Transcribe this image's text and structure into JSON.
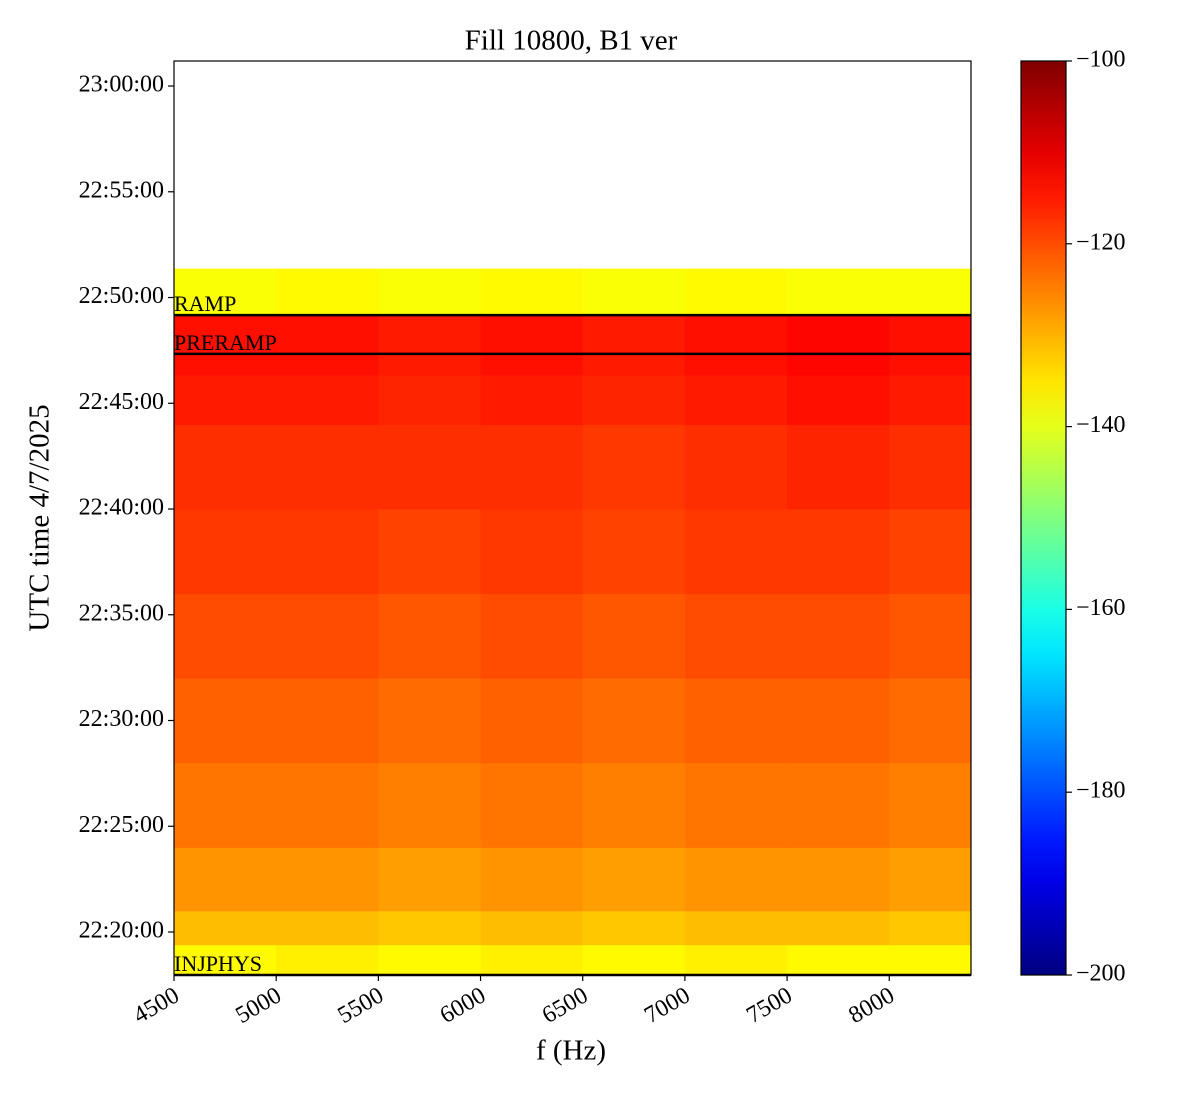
{
  "chart_data": {
    "type": "spectrogram",
    "title": "Fill 10800, B1 ver",
    "x_label": "f (Hz)",
    "y_label": "UTC time 4/7/2025",
    "colormap": "jet",
    "xlim": [
      4500,
      8400
    ],
    "xticks": [
      4500,
      5000,
      5500,
      6000,
      6500,
      7000,
      7500,
      8000
    ],
    "ylim": [
      "22:17:58",
      "23:01:11"
    ],
    "yticks": [
      "22:20:00",
      "22:25:00",
      "22:30:00",
      "22:35:00",
      "22:40:00",
      "22:45:00",
      "22:50:00",
      "22:55:00",
      "23:00:00"
    ],
    "clim": [
      -200,
      -100
    ],
    "cticks": [
      {
        "value": -200,
        "label": "−200"
      },
      {
        "value": -180,
        "label": "−180"
      },
      {
        "value": -160,
        "label": "−160"
      },
      {
        "value": -140,
        "label": "−140"
      },
      {
        "value": -120,
        "label": "−120"
      },
      {
        "value": -100,
        "label": "−100"
      }
    ],
    "x_edges": [
      4500,
      5000,
      5500,
      6000,
      6500,
      7000,
      7500,
      8000,
      8400
    ],
    "y_edges": [
      "22:17:58",
      "22:19:24",
      "22:21:00",
      "22:24:00",
      "22:28:00",
      "22:32:00",
      "22:36:00",
      "22:40:00",
      "22:44:00",
      "22:46:20",
      "22:49:10",
      "22:51:22"
    ],
    "values": [
      [
        -137,
        -136,
        -137,
        -136,
        -137,
        -136,
        -137,
        -137
      ],
      [
        -131,
        -131,
        -132,
        -131,
        -132,
        -131,
        -131,
        -132
      ],
      [
        -127,
        -127,
        -128,
        -127,
        -128,
        -127,
        -127,
        -128
      ],
      [
        -124,
        -124,
        -125,
        -124,
        -125,
        -124,
        -124,
        -125
      ],
      [
        -122,
        -122,
        -123,
        -122,
        -123,
        -122,
        -122,
        -123
      ],
      [
        -120,
        -120,
        -121,
        -120,
        -121,
        -120,
        -120,
        -121
      ],
      [
        -118,
        -118,
        -119,
        -118,
        -119,
        -118,
        -118,
        -119
      ],
      [
        -117,
        -117,
        -117,
        -117,
        -118,
        -117,
        -116,
        -117
      ],
      [
        -115,
        -115,
        -116,
        -115,
        -116,
        -115,
        -114,
        -115
      ],
      [
        -114,
        -114,
        -115,
        -114,
        -115,
        -114,
        -113,
        -114
      ],
      [
        -138,
        -137,
        -138,
        -137,
        -138,
        -137,
        -138,
        -138
      ]
    ],
    "events": [
      {
        "label": "RAMP",
        "time": "22:49:10"
      },
      {
        "label": "PRERAMP",
        "time": "22:47:20"
      },
      {
        "label": "INJPHYS",
        "time": "22:17:58"
      }
    ]
  }
}
